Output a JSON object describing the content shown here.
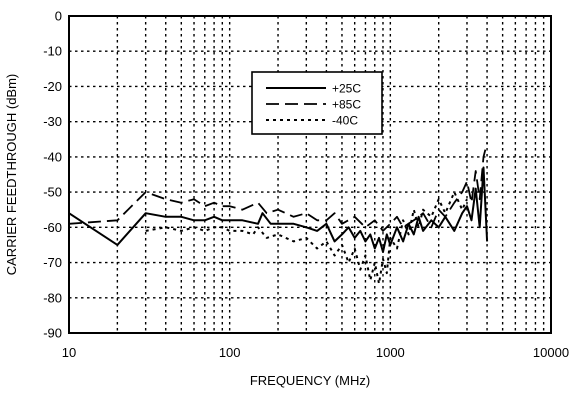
{
  "chart_data": {
    "type": "line",
    "xlabel": "FREQUENCY (MHz)",
    "ylabel": "CARRIER FEEDTHROUGH (dBm)",
    "x_scale": "log",
    "xlim": [
      10,
      10000
    ],
    "ylim": [
      -90,
      0
    ],
    "x_ticks": [
      "10",
      "100",
      "1000",
      "10000"
    ],
    "y_ticks": [
      "0",
      "-10",
      "-20",
      "-30",
      "-40",
      "-50",
      "-60",
      "-70",
      "-80",
      "-90"
    ],
    "grid": true,
    "legend_position": "top-right",
    "series": [
      {
        "name": "+25C",
        "line_style": "solid",
        "x": [
          10,
          20,
          30,
          40,
          50,
          60,
          70,
          80,
          90,
          100,
          120,
          150,
          160,
          180,
          200,
          250,
          300,
          350,
          400,
          450,
          500,
          550,
          600,
          650,
          700,
          750,
          800,
          850,
          900,
          950,
          1000,
          1100,
          1200,
          1300,
          1400,
          1500,
          1600,
          1800,
          2000,
          2200,
          2500,
          2800,
          3000,
          3200,
          3400,
          3600,
          3800,
          4000
        ],
        "y": [
          -56,
          -65,
          -56,
          -57,
          -57,
          -58,
          -58,
          -57,
          -58,
          -58,
          -58,
          -59,
          -56,
          -59,
          -59,
          -59,
          -60,
          -61,
          -59,
          -64,
          -62,
          -60,
          -63,
          -61,
          -64,
          -62,
          -66,
          -63,
          -67,
          -62,
          -65,
          -60,
          -64,
          -59,
          -62,
          -57,
          -61,
          -58,
          -60,
          -57,
          -61,
          -56,
          -54,
          -58,
          -49,
          -60,
          -43,
          -64
        ]
      },
      {
        "name": "+85C",
        "line_style": "dashed",
        "x": [
          10,
          20,
          30,
          40,
          50,
          60,
          70,
          80,
          90,
          100,
          120,
          150,
          170,
          200,
          250,
          300,
          350,
          400,
          450,
          500,
          600,
          700,
          800,
          900,
          1000,
          1100,
          1200,
          1400,
          1600,
          1800,
          2000,
          2200,
          2500,
          2800,
          3000,
          3200,
          3400,
          3600,
          3800,
          4000
        ],
        "y": [
          -59,
          -58,
          -50,
          -52,
          -53,
          -52,
          -54,
          -53,
          -54,
          -54,
          -55,
          -53,
          -56,
          -55,
          -57,
          -56,
          -58,
          -58,
          -56,
          -59,
          -57,
          -60,
          -58,
          -61,
          -59,
          -57,
          -60,
          -58,
          -56,
          -60,
          -55,
          -57,
          -53,
          -50,
          -47,
          -53,
          -44,
          -52,
          -40,
          -36
        ]
      },
      {
        "name": "-40C",
        "line_style": "dotted",
        "x": [
          30,
          40,
          50,
          60,
          70,
          80,
          90,
          100,
          120,
          140,
          150,
          170,
          200,
          250,
          300,
          350,
          400,
          450,
          500,
          550,
          600,
          650,
          700,
          750,
          800,
          850,
          900,
          950,
          1000,
          1100,
          1200,
          1300,
          1400,
          1500,
          1600,
          1800,
          2000,
          2200,
          2500,
          2800,
          3000
        ],
        "y": [
          -61,
          -60,
          -61,
          -60,
          -61,
          -60,
          -60,
          -61,
          -61,
          -62,
          -60,
          -63,
          -62,
          -64,
          -63,
          -66,
          -64,
          -68,
          -65,
          -70,
          -66,
          -72,
          -68,
          -75,
          -70,
          -76,
          -69,
          -73,
          -63,
          -66,
          -58,
          -62,
          -55,
          -60,
          -55,
          -57,
          -52,
          -56,
          -50,
          -55,
          -52
        ]
      }
    ]
  }
}
